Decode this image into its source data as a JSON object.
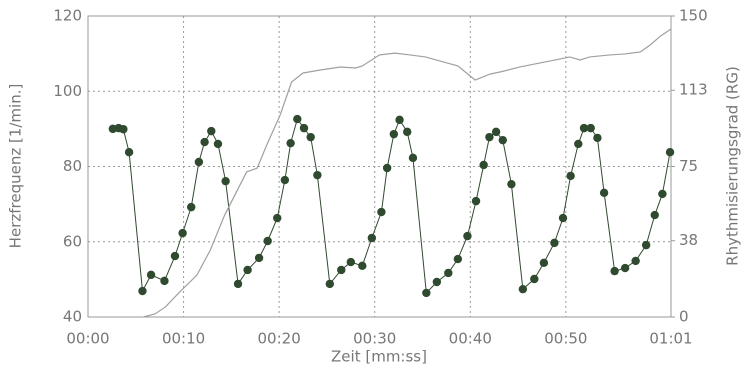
{
  "chart_data": {
    "type": "line",
    "xlabel": "Zeit [mm:ss]",
    "ylabel": "Herzfrequenz [1/min.]",
    "y2label": "Rhythmisierungsgrad (RG)",
    "xlim": [
      0,
      61
    ],
    "xticks": [
      {
        "value": 0,
        "label": "00:00"
      },
      {
        "value": 10,
        "label": "00:10"
      },
      {
        "value": 20,
        "label": "00:20"
      },
      {
        "value": 30,
        "label": "00:30"
      },
      {
        "value": 40,
        "label": "00:40"
      },
      {
        "value": 50,
        "label": "00:50"
      },
      {
        "value": 61,
        "label": "01:01"
      }
    ],
    "ylim": [
      40,
      120
    ],
    "yticks": [
      40,
      60,
      80,
      100,
      120
    ],
    "y2lim": [
      0,
      150
    ],
    "y2ticks": [
      0,
      38,
      75,
      113,
      150
    ],
    "grid": true,
    "series": [
      {
        "color": "#2f4a2f",
        "markers": true,
        "x": [
          2.6,
          3.2,
          3.7,
          4.3,
          5.7,
          6.6,
          8.0,
          9.1,
          9.9,
          10.8,
          11.6,
          12.2,
          12.9,
          13.6,
          14.4,
          15.7,
          16.7,
          17.9,
          18.8,
          19.8,
          20.6,
          21.2,
          21.9,
          22.6,
          23.3,
          24.0,
          25.3,
          26.5,
          27.5,
          28.7,
          29.7,
          30.7,
          31.3,
          32.0,
          32.6,
          33.4,
          34.0,
          35.4,
          36.5,
          37.7,
          38.7,
          39.7,
          40.6,
          41.4,
          42.0,
          42.7,
          43.4,
          44.3,
          45.5,
          46.7,
          47.7,
          48.8,
          49.7,
          50.5,
          51.3,
          51.9,
          52.6,
          53.3,
          54.0,
          55.1,
          56.2,
          57.3,
          58.4,
          59.3,
          60.1,
          60.9
        ],
        "values": [
          90.0,
          90.2,
          89.9,
          83.8,
          46.9,
          51.2,
          49.6,
          56.2,
          62.3,
          69.2,
          81.2,
          86.5,
          89.4,
          86.0,
          76.1,
          48.8,
          52.5,
          55.7,
          60.2,
          66.3,
          76.4,
          86.2,
          92.6,
          90.2,
          87.8,
          77.7,
          48.8,
          52.5,
          54.6,
          53.6,
          61.0,
          67.9,
          79.6,
          88.6,
          92.4,
          89.2,
          82.3,
          46.4,
          49.3,
          51.7,
          55.4,
          61.5,
          70.8,
          80.4,
          87.8,
          89.2,
          87.0,
          75.3,
          47.4,
          50.1,
          54.4,
          59.7,
          66.3,
          77.5,
          86.0,
          90.2,
          90.2,
          87.6,
          73.0,
          52.2,
          53.0,
          54.9,
          59.1,
          67.1,
          72.7,
          83.8
        ]
      },
      {
        "color": "#a0a0a0",
        "axis": "y2",
        "markers": false,
        "x": [
          5.8,
          7.0,
          8.1,
          9.6,
          11.4,
          12.8,
          14.3,
          16.6,
          17.7,
          18.7,
          20.1,
          21.3,
          22.5,
          24.3,
          26.4,
          28.0,
          28.7,
          30.5,
          32.1,
          33.7,
          35.3,
          36.8,
          38.7,
          40.5,
          42.1,
          43.1,
          45.2,
          47.3,
          48.9,
          50.4,
          51.5,
          52.5,
          54.6,
          56.2,
          57.8,
          58.8,
          59.9,
          61.0
        ],
        "values": [
          0,
          1.5,
          5.0,
          12.5,
          20.9,
          33.4,
          50.8,
          72.3,
          74.2,
          85.7,
          100.6,
          117.1,
          121.6,
          123.1,
          124.6,
          124.1,
          125.1,
          130.6,
          131.5,
          130.6,
          129.6,
          127.6,
          125.1,
          118.1,
          121.1,
          122.1,
          124.6,
          126.6,
          128.1,
          129.6,
          128.1,
          129.6,
          130.6,
          131.1,
          132.1,
          135.5,
          140.0,
          143.5
        ]
      }
    ]
  }
}
